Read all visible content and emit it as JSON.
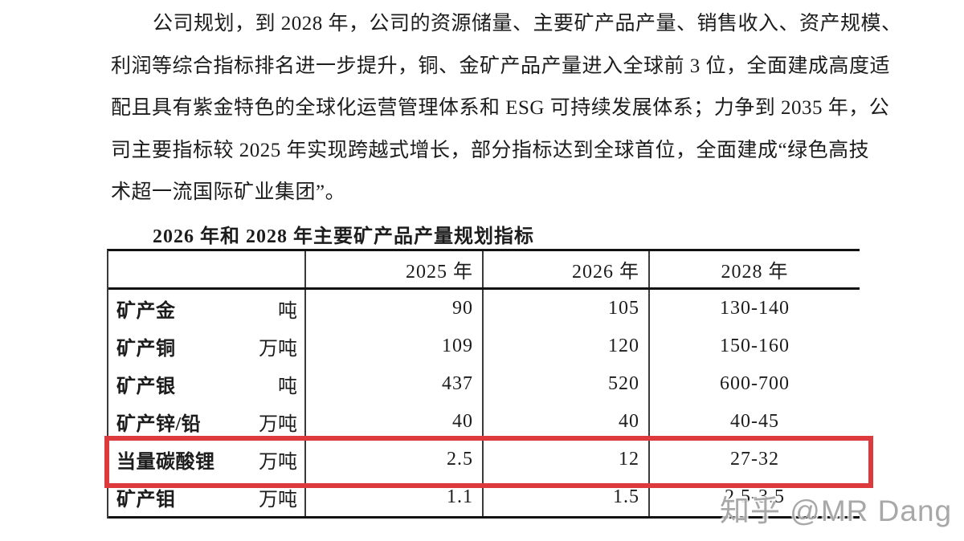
{
  "page": {
    "background": "#ffffff",
    "text_color": "#1c1c1c",
    "rule_color": "#121212"
  },
  "paragraph": {
    "lines": [
      "公司规划，到 2028 年，公司的资源储量、主要矿产品产量、销售收入、资产规模、",
      "利润等综合指标排名进一步提升，铜、金矿产品产量进入全球前 3 位，全面建成高度适",
      "配且具有紫金特色的全球化运营管理体系和 ESG 可持续发展体系；力争到 2035 年，公",
      "司主要指标较 2025 年实现跨越式增长，部分指标达到全球首位，全面建成“绿色高技",
      "术超一流国际矿业集团”。"
    ]
  },
  "table": {
    "title": "2026 年和 2028 年主要矿产品产量规划指标",
    "columns": [
      "2025 年",
      "2026 年",
      "2028 年"
    ],
    "rows": [
      {
        "name": "矿产金",
        "unit": "吨",
        "y2025": "90",
        "y2026": "105",
        "y2028": "130-140"
      },
      {
        "name": "矿产铜",
        "unit": "万吨",
        "y2025": "109",
        "y2026": "120",
        "y2028": "150-160"
      },
      {
        "name": "矿产银",
        "unit": "吨",
        "y2025": "437",
        "y2026": "520",
        "y2028": "600-700"
      },
      {
        "name": "矿产锌/铅",
        "unit": "万吨",
        "y2025": "40",
        "y2026": "40",
        "y2028": "40-45"
      },
      {
        "name": "当量碳酸锂",
        "unit": "万吨",
        "y2025": "2.5",
        "y2026": "12",
        "y2028": "27-32",
        "highlighted": true
      },
      {
        "name": "矿产钼",
        "unit": "万吨",
        "y2025": "1.1",
        "y2026": "1.5",
        "y2028": "2.5-3.5"
      }
    ],
    "highlight_color": "#dc3a3c"
  },
  "watermark": {
    "text": "知乎 @MR Dang",
    "color": "#a8a8a8"
  }
}
